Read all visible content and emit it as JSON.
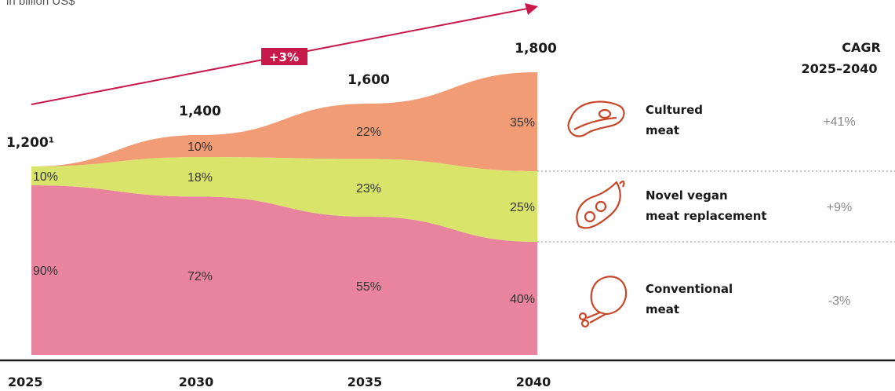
{
  "unit_label": "in billion US$",
  "growth_badge": "+3%",
  "cagr_header": [
    "CAGR",
    "2025–2040"
  ],
  "colors": {
    "conventional": "#e8849d",
    "vegan": "#d8e46a",
    "cultured": "#f29c76",
    "accent": "#c8194b",
    "icon": "#c8462a"
  },
  "chart_data": {
    "type": "area",
    "x": [
      "2025",
      "2030",
      "2035",
      "2040"
    ],
    "totals": [
      1200,
      1400,
      1600,
      1800
    ],
    "total_labels": [
      "1,200¹",
      "1,400",
      "1,600",
      "1,800"
    ],
    "series": [
      {
        "name": "Conventional meat",
        "values": [
          90,
          72,
          55,
          40
        ],
        "labels": [
          "90%",
          "72%",
          "55%",
          "40%"
        ],
        "cagr": "-3%",
        "icon": "chicken-leg-icon",
        "label_lines": [
          "Conventional",
          "meat"
        ]
      },
      {
        "name": "Novel vegan meat replacement",
        "values": [
          10,
          18,
          23,
          25
        ],
        "labels": [
          "10%",
          "18%",
          "23%",
          "25%"
        ],
        "cagr": "+9%",
        "icon": "pea-pod-icon",
        "label_lines": [
          "Novel vegan",
          "meat replacement"
        ]
      },
      {
        "name": "Cultured meat",
        "values": [
          0,
          10,
          22,
          35
        ],
        "labels": [
          "",
          "10%",
          "22%",
          "35%"
        ],
        "cagr": "+41%",
        "icon": "steak-icon",
        "label_lines": [
          "Cultured",
          "meat"
        ]
      }
    ]
  }
}
